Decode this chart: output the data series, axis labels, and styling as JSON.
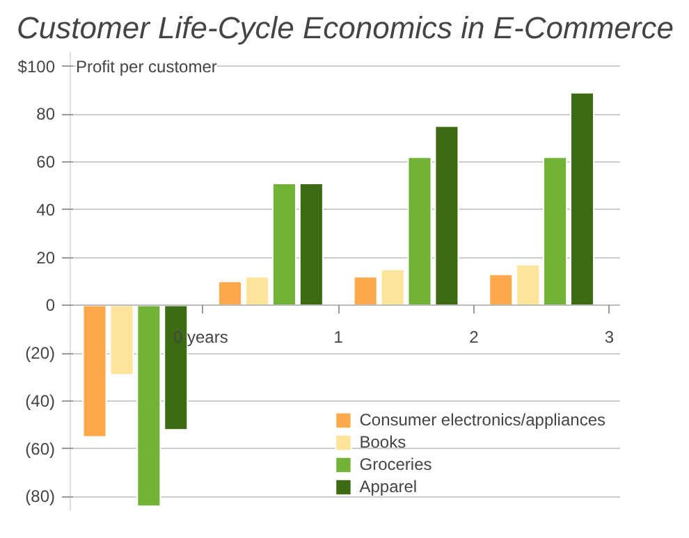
{
  "chart_data": {
    "type": "bar",
    "title": "Customer Life-Cycle Economics in E-Commerce",
    "ylabel": "Profit per customer",
    "x": [
      -0.5,
      0.5,
      1.5,
      2.5
    ],
    "series": [
      {
        "name": "Consumer electronics/appliances",
        "color": "#ffa94d",
        "values": [
          -55,
          10,
          12,
          13
        ]
      },
      {
        "name": "Books",
        "color": "#fde49a",
        "values": [
          -29,
          12,
          15,
          17
        ]
      },
      {
        "name": "Groceries",
        "color": "#72b236",
        "values": [
          -84,
          51,
          62,
          62
        ]
      },
      {
        "name": "Apparel",
        "color": "#3d6b14",
        "values": [
          -52,
          51,
          75,
          89
        ]
      }
    ],
    "xlim": [
      -0.98,
      3.08
    ],
    "xticks": [
      {
        "value": 0,
        "label": "0  years"
      },
      1,
      2,
      3
    ],
    "ylim": [
      -86,
      106
    ],
    "yticks": [
      {
        "value": 100,
        "label": "$100"
      },
      80,
      60,
      40,
      20,
      0,
      {
        "value": -20,
        "label": "(20)"
      },
      {
        "value": -40,
        "label": "(40)"
      },
      {
        "value": -60,
        "label": "(60)"
      },
      {
        "value": -80,
        "label": "(80)"
      }
    ],
    "grid": "y",
    "legend": "bottom right"
  }
}
